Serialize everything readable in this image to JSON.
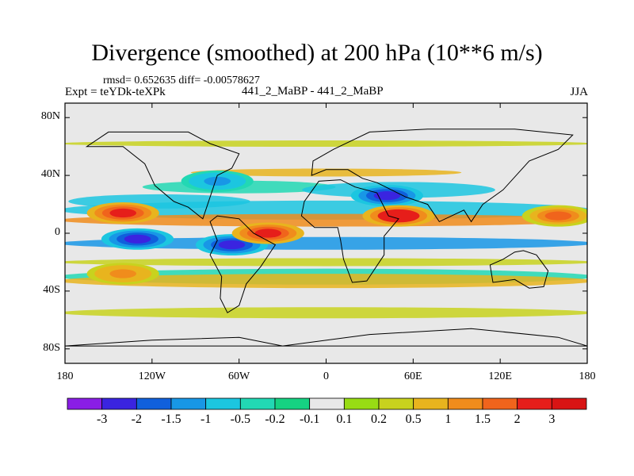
{
  "chart_data": {
    "type": "heatmap",
    "title": "Divergence (smoothed) at 200 hPa (10**6 m/s)",
    "stats_line": "rmsd= 0.652635 diff= -0.00578627",
    "expt_label": "Expt = teYDk-teXPk",
    "run_label": "441_2_MaBP - 441_2_MaBP",
    "season": "JJA",
    "x_range": [
      -180,
      180
    ],
    "y_range": [
      -90,
      90
    ],
    "x_tick_values": [
      -180,
      -120,
      -60,
      0,
      60,
      120,
      180
    ],
    "x_tick_labels": [
      "180",
      "120W",
      "60W",
      "0",
      "60E",
      "120E",
      "180"
    ],
    "y_tick_values": [
      80,
      40,
      0,
      -40,
      -80
    ],
    "y_tick_labels": [
      "80N",
      "40N",
      "0",
      "40S",
      "80S"
    ],
    "colorbar": {
      "labels": [
        "-3",
        "-2",
        "-1.5",
        "-1",
        "-0.5",
        "-0.2",
        "-0.1",
        "0.1",
        "0.2",
        "0.5",
        "1",
        "1.5",
        "2",
        "3"
      ],
      "colors": [
        "#8a1ee6",
        "#3a24e0",
        "#1060dc",
        "#1897e6",
        "#1cc6e0",
        "#22d8b4",
        "#16d282",
        "#e8e8e8",
        "#98dc14",
        "#c8d21e",
        "#e8b41e",
        "#f08c1c",
        "#f0641c",
        "#e61e1a",
        "#d81414"
      ]
    },
    "features": [
      {
        "name": "tropical-east-pacific-convergence",
        "lon": -130,
        "lat": -4,
        "value": -2.3
      },
      {
        "name": "south-america-convergence",
        "lon": -65,
        "lat": -8,
        "value": -2.6
      },
      {
        "name": "north-pacific-convergence",
        "lon": -75,
        "lat": 36,
        "value": -1.2
      },
      {
        "name": "central-asia-convergence",
        "lon": 42,
        "lat": 26,
        "value": -2.0
      },
      {
        "name": "central-pacific-divergence",
        "lon": -140,
        "lat": 14,
        "value": 2.0
      },
      {
        "name": "tropical-atlantic-divergence",
        "lon": -40,
        "lat": 0,
        "value": 2.5
      },
      {
        "name": "asian-monsoon-divergence",
        "lon": 50,
        "lat": 12,
        "value": 2.7
      },
      {
        "name": "west-pacific-divergence",
        "lon": 160,
        "lat": 12,
        "value": 1.6
      },
      {
        "name": "south-pacific-divergence",
        "lon": -140,
        "lat": -28,
        "value": 1.2
      }
    ]
  }
}
